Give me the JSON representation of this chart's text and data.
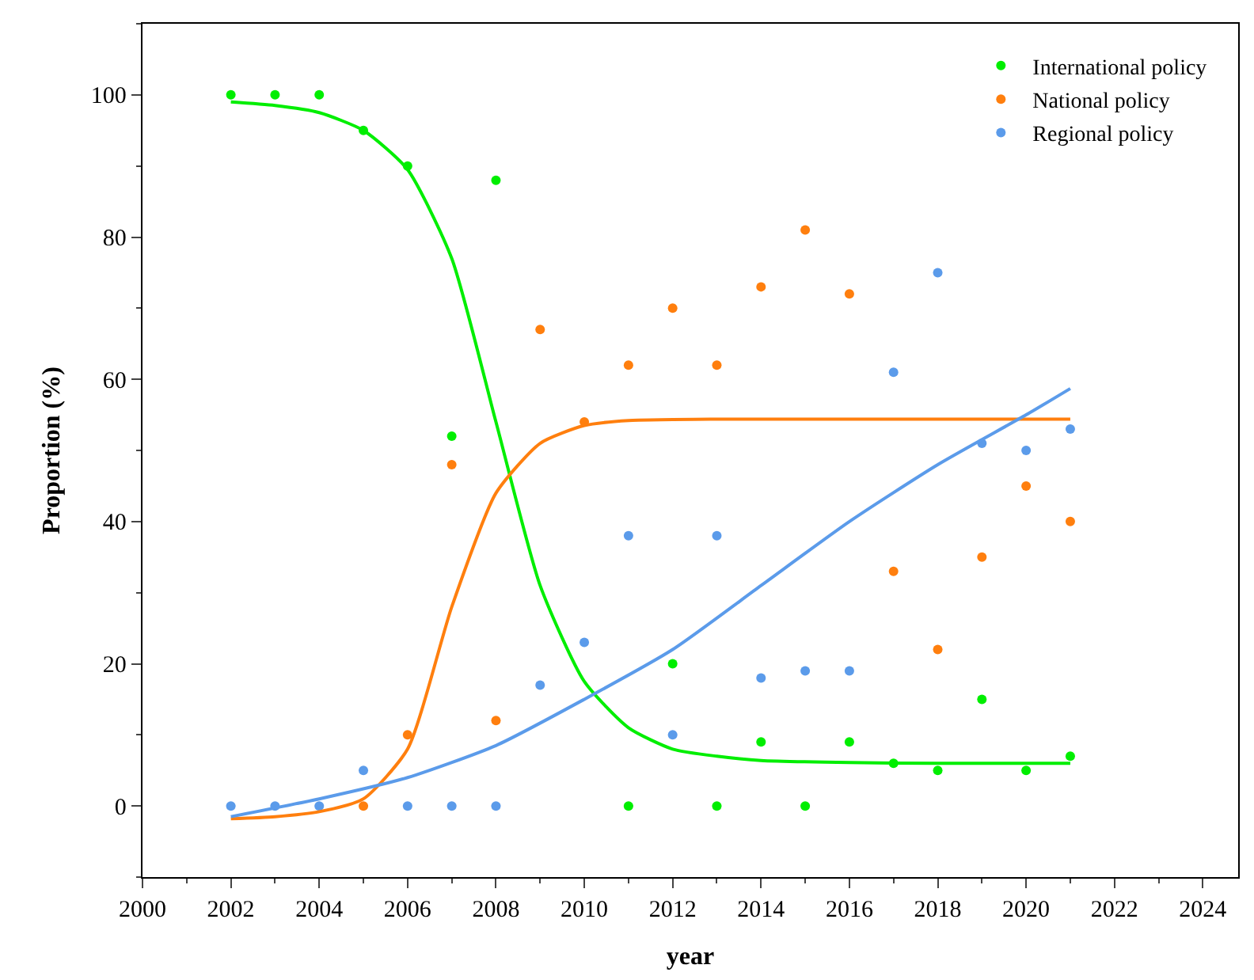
{
  "chart_data": {
    "type": "scatter",
    "xlabel": "year",
    "ylabel": "Proportion (%)",
    "xlim": [
      2000,
      2024.8
    ],
    "xticks": [
      2000,
      2002,
      2004,
      2006,
      2008,
      2010,
      2012,
      2014,
      2016,
      2018,
      2020,
      2022,
      2024
    ],
    "ylim": [
      -10,
      110
    ],
    "yticks": [
      0,
      20,
      40,
      60,
      80,
      100
    ],
    "legend": "top right",
    "marker": "circle",
    "series": [
      {
        "name": "International policy",
        "color": "#00ee00",
        "x": [
          2002,
          2003,
          2004,
          2005,
          2006,
          2007,
          2008,
          2011,
          2012,
          2013,
          2014,
          2015,
          2016,
          2017,
          2018,
          2019,
          2020,
          2021
        ],
        "values": [
          100,
          100,
          100,
          95,
          90,
          52,
          88,
          0,
          20,
          0,
          9,
          0,
          9,
          6,
          5,
          15,
          5,
          7
        ]
      },
      {
        "name": "National policy",
        "color": "#ff7f0e",
        "x": [
          2005,
          2006,
          2007,
          2008,
          2009,
          2010,
          2011,
          2012,
          2013,
          2014,
          2015,
          2016,
          2017,
          2018,
          2019,
          2020,
          2021
        ],
        "values": [
          0,
          10,
          48,
          12,
          67,
          54,
          62,
          70,
          62,
          73,
          81,
          72,
          33,
          22,
          35,
          45,
          40
        ]
      },
      {
        "name": "Regional policy",
        "color": "#5b9bea",
        "x": [
          2002,
          2003,
          2004,
          2005,
          2006,
          2007,
          2008,
          2009,
          2010,
          2011,
          2012,
          2013,
          2014,
          2015,
          2016,
          2017,
          2018,
          2019,
          2020,
          2021
        ],
        "values": [
          0,
          0,
          0,
          5,
          0,
          0,
          0,
          17,
          23,
          38,
          10,
          38,
          18,
          19,
          19,
          61,
          75,
          51,
          50,
          53
        ]
      },
      {
        "type": "line",
        "marker": "none",
        "color": "#00ee00",
        "x": [
          2002,
          2003,
          2004,
          2005,
          2006,
          2007,
          2008,
          2009,
          2010,
          2011,
          2012,
          2013,
          2014,
          2016,
          2018,
          2021
        ],
        "values": [
          99,
          98.5,
          97.5,
          95,
          89.5,
          77,
          54,
          31,
          17.5,
          11,
          8,
          7,
          6.4,
          6.1,
          6,
          6
        ]
      },
      {
        "type": "line",
        "marker": "none",
        "color": "#ff7f0e",
        "x": [
          2002,
          2003,
          2004,
          2005,
          2006,
          2007,
          2008,
          2009,
          2010,
          2011,
          2013,
          2016,
          2021
        ],
        "values": [
          -1.8,
          -1.5,
          -0.8,
          1,
          8,
          28,
          44,
          51,
          53.5,
          54.2,
          54.4,
          54.4,
          54.4
        ]
      },
      {
        "type": "line",
        "marker": "none",
        "color": "#5b9bea",
        "x": [
          2002,
          2004,
          2006,
          2008,
          2010,
          2012,
          2014,
          2016,
          2018,
          2020,
          2021
        ],
        "values": [
          -1.5,
          1,
          4,
          8.5,
          15,
          22,
          31,
          40,
          48,
          55,
          58.7
        ]
      }
    ]
  }
}
